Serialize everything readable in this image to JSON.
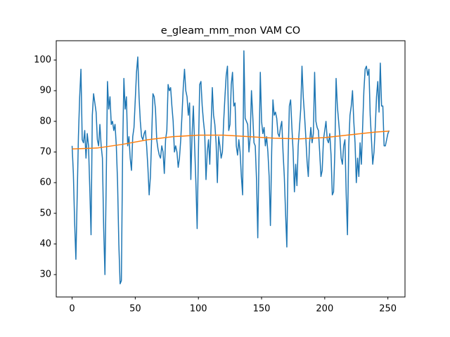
{
  "chart_data": {
    "type": "line",
    "title": "e_gleam_mm_mon VAM CO",
    "xlim": [
      -12.55,
      263.55
    ],
    "ylim": [
      22.7,
      106.3
    ],
    "xticks": [
      0,
      50,
      100,
      150,
      200,
      250
    ],
    "yticks": [
      30,
      40,
      50,
      60,
      70,
      80,
      90,
      100
    ],
    "series": [
      {
        "color": "#1f77b4",
        "x": [
          0,
          1,
          2,
          3,
          4,
          5,
          6,
          7,
          8,
          9,
          10,
          11,
          12,
          13,
          14,
          15,
          16,
          17,
          18,
          19,
          20,
          21,
          22,
          23,
          24,
          25,
          26,
          27,
          28,
          29,
          30,
          31,
          32,
          33,
          34,
          35,
          36,
          37,
          38,
          39,
          40,
          41,
          42,
          43,
          44,
          45,
          46,
          47,
          48,
          49,
          50,
          51,
          52,
          53,
          54,
          55,
          56,
          57,
          58,
          59,
          60,
          61,
          62,
          63,
          64,
          65,
          66,
          67,
          68,
          69,
          70,
          71,
          72,
          73,
          74,
          75,
          76,
          77,
          78,
          79,
          80,
          81,
          82,
          83,
          84,
          85,
          86,
          87,
          88,
          89,
          90,
          91,
          92,
          93,
          94,
          95,
          96,
          97,
          98,
          99,
          100,
          101,
          102,
          103,
          104,
          105,
          106,
          107,
          108,
          109,
          110,
          111,
          112,
          113,
          114,
          115,
          116,
          117,
          118,
          119,
          120,
          121,
          122,
          123,
          124,
          125,
          126,
          127,
          128,
          129,
          130,
          131,
          132,
          133,
          134,
          135,
          136,
          137,
          138,
          139,
          140,
          141,
          142,
          143,
          144,
          145,
          146,
          147,
          148,
          149,
          150,
          151,
          152,
          153,
          154,
          155,
          156,
          157,
          158,
          159,
          160,
          161,
          162,
          163,
          164,
          165,
          166,
          167,
          168,
          169,
          170,
          171,
          172,
          173,
          174,
          175,
          176,
          177,
          178,
          179,
          180,
          181,
          182,
          183,
          184,
          185,
          186,
          187,
          188,
          189,
          190,
          191,
          192,
          193,
          194,
          195,
          196,
          197,
          198,
          199,
          200,
          201,
          202,
          203,
          204,
          205,
          206,
          207,
          208,
          209,
          210,
          211,
          212,
          213,
          214,
          215,
          216,
          217,
          218,
          219,
          220,
          221,
          222,
          223,
          224,
          225,
          226,
          227,
          228,
          229,
          230,
          231,
          232,
          233,
          234,
          235,
          236,
          237,
          238,
          239,
          240,
          241,
          242,
          243,
          244,
          245,
          246,
          247,
          248,
          249,
          250,
          251
        ],
        "values": [
          72,
          63,
          47,
          35,
          55,
          75,
          88,
          97,
          74,
          73,
          77,
          68,
          76,
          72,
          58,
          43,
          82,
          89,
          86,
          83,
          74,
          72,
          79,
          72,
          68,
          45,
          30,
          60,
          93,
          84,
          88,
          79,
          80,
          77,
          79,
          72,
          60,
          40,
          27,
          28,
          70,
          94,
          84,
          88,
          72,
          75,
          68,
          64,
          75,
          78,
          87,
          96,
          101,
          88,
          80,
          75,
          74,
          76,
          77,
          72,
          65,
          56,
          62,
          75,
          89,
          88,
          84,
          74,
          71,
          69,
          68,
          72,
          70,
          63,
          74,
          77,
          92,
          90,
          91,
          85,
          80,
          70,
          72,
          70,
          65,
          68,
          74,
          82,
          91,
          97,
          90,
          88,
          82,
          86,
          61,
          76,
          85,
          72,
          60,
          45,
          70,
          92,
          93,
          85,
          80,
          76,
          61,
          70,
          74,
          66,
          78,
          91,
          82,
          79,
          73,
          60,
          75,
          72,
          68,
          70,
          80,
          88,
          95,
          98,
          77,
          79,
          92,
          96,
          85,
          86,
          72,
          69,
          74,
          70,
          62,
          56,
          103,
          81,
          80,
          79,
          70,
          75,
          90,
          82,
          73,
          72,
          61,
          42,
          70,
          96,
          80,
          76,
          78,
          72,
          75,
          70,
          62,
          46,
          70,
          87,
          82,
          83,
          81,
          76,
          75,
          78,
          80,
          70,
          62,
          50,
          39,
          68,
          85,
          87,
          78,
          70,
          57,
          66,
          59,
          72,
          78,
          84,
          98,
          88,
          82,
          75,
          67,
          62,
          73,
          78,
          73,
          76,
          96,
          80,
          78,
          77,
          70,
          62,
          64,
          74,
          77,
          80,
          74,
          73,
          76,
          69,
          56,
          57,
          70,
          94,
          85,
          80,
          75,
          68,
          66,
          72,
          74,
          56,
          43,
          72,
          82,
          85,
          90,
          80,
          73,
          60,
          68,
          62,
          73,
          66,
          78,
          90,
          97,
          98,
          95,
          97,
          82,
          74,
          66,
          70,
          78,
          88,
          93,
          83,
          99,
          85,
          85,
          72,
          72,
          74,
          76,
          77
        ]
      },
      {
        "color": "#ff7f0e",
        "x": [
          0,
          20,
          40,
          60,
          80,
          100,
          120,
          140,
          160,
          180,
          200,
          220,
          240,
          251
        ],
        "values": [
          71,
          71.3,
          72.5,
          74,
          75,
          75.5,
          75.5,
          75,
          74.5,
          74.3,
          74.7,
          75.6,
          76.5,
          76.8
        ]
      }
    ]
  }
}
